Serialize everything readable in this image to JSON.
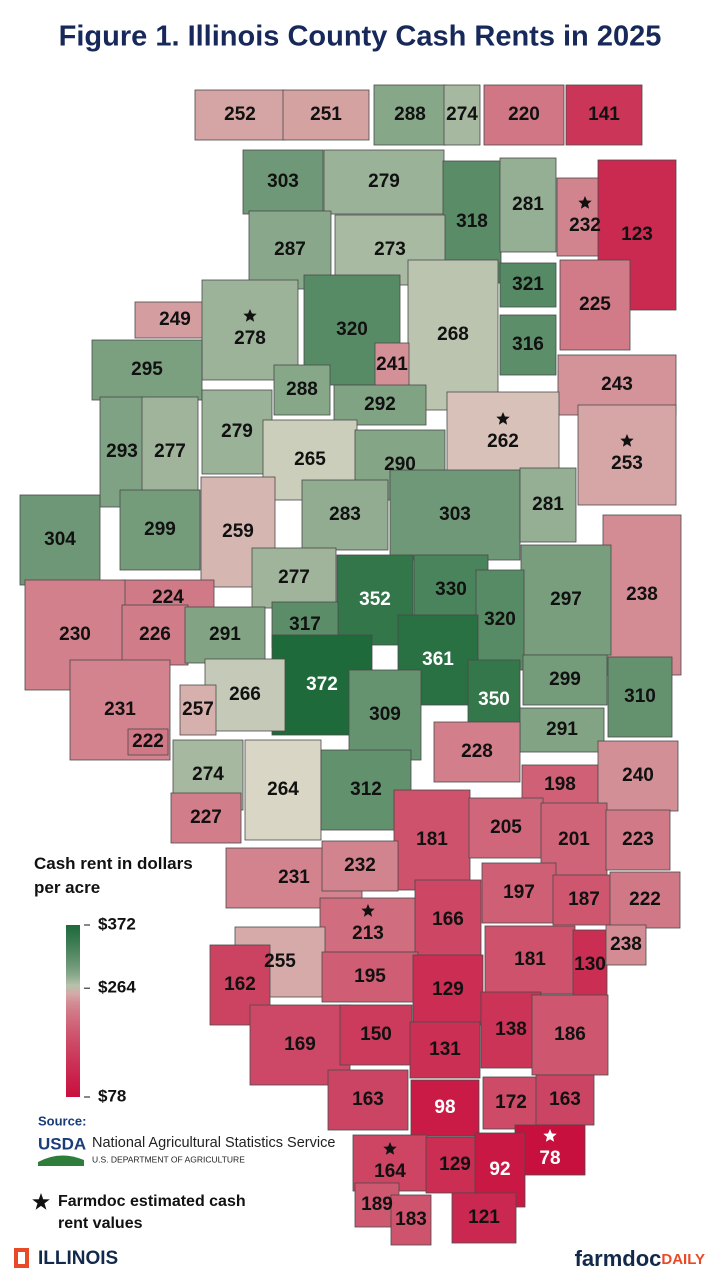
{
  "title": "Figure 1. Illinois County Cash Rents in 2025",
  "legend": {
    "title": "Cash rent in dollars per acre",
    "stops": [
      {
        "value": 372,
        "label": "$372",
        "color": "#1e6a3b"
      },
      {
        "value": 264,
        "label": "$264",
        "color": "#d9d6c6"
      },
      {
        "value": 78,
        "label": "$78",
        "color": "#c8103f"
      }
    ]
  },
  "counties": [
    {
      "value": 252
    },
    {
      "value": 251
    },
    {
      "value": 288
    },
    {
      "value": 274
    },
    {
      "value": 220
    },
    {
      "value": 141
    },
    {
      "value": 303
    },
    {
      "value": 279
    },
    {
      "value": 318
    },
    {
      "value": 281
    },
    {
      "value": 232,
      "estimated": true
    },
    {
      "value": 123
    },
    {
      "value": 287
    },
    {
      "value": 273
    },
    {
      "value": 321
    },
    {
      "value": 225
    },
    {
      "value": 249
    },
    {
      "value": 278,
      "estimated": true
    },
    {
      "value": 320
    },
    {
      "value": 268
    },
    {
      "value": 316
    },
    {
      "value": 295
    },
    {
      "value": 241
    },
    {
      "value": 243
    },
    {
      "value": 288
    },
    {
      "value": 292
    },
    {
      "value": 262,
      "estimated": true
    },
    {
      "value": 293
    },
    {
      "value": 277
    },
    {
      "value": 279
    },
    {
      "value": 265
    },
    {
      "value": 290
    },
    {
      "value": 253,
      "estimated": true
    },
    {
      "value": 304
    },
    {
      "value": 299
    },
    {
      "value": 259
    },
    {
      "value": 283
    },
    {
      "value": 303
    },
    {
      "value": 281
    },
    {
      "value": 238
    },
    {
      "value": 224
    },
    {
      "value": 277
    },
    {
      "value": 352
    },
    {
      "value": 330
    },
    {
      "value": 297
    },
    {
      "value": 230
    },
    {
      "value": 226
    },
    {
      "value": 291
    },
    {
      "value": 317
    },
    {
      "value": 320
    },
    {
      "value": 372
    },
    {
      "value": 361
    },
    {
      "value": 266
    },
    {
      "value": 257
    },
    {
      "value": 231
    },
    {
      "value": 350
    },
    {
      "value": 299
    },
    {
      "value": 310
    },
    {
      "value": 309
    },
    {
      "value": 291
    },
    {
      "value": 222
    },
    {
      "value": 228
    },
    {
      "value": 274
    },
    {
      "value": 264
    },
    {
      "value": 312
    },
    {
      "value": 198
    },
    {
      "value": 240
    },
    {
      "value": 227
    },
    {
      "value": 181
    },
    {
      "value": 205
    },
    {
      "value": 201
    },
    {
      "value": 223
    },
    {
      "value": 231
    },
    {
      "value": 232
    },
    {
      "value": 197
    },
    {
      "value": 187
    },
    {
      "value": 222
    },
    {
      "value": 213,
      "estimated": true
    },
    {
      "value": 166
    },
    {
      "value": 255
    },
    {
      "value": 181
    },
    {
      "value": 130
    },
    {
      "value": 238
    },
    {
      "value": 195
    },
    {
      "value": 129
    },
    {
      "value": 162
    },
    {
      "value": 169
    },
    {
      "value": 150
    },
    {
      "value": 131
    },
    {
      "value": 138
    },
    {
      "value": 186
    },
    {
      "value": 163
    },
    {
      "value": 98
    },
    {
      "value": 172
    },
    {
      "value": 163
    },
    {
      "value": 78,
      "estimated": true
    },
    {
      "value": 164,
      "estimated": true
    },
    {
      "value": 129
    },
    {
      "value": 92
    },
    {
      "value": 189
    },
    {
      "value": 183
    },
    {
      "value": 121
    }
  ],
  "source": {
    "heading": "Source:",
    "logo": "USDA",
    "agency": "National Agricultural Statistics Service",
    "department": "U.S. DEPARTMENT OF AGRICULTURE"
  },
  "footnote": "Farmdoc estimated cash rent values",
  "footer": {
    "left": "ILLINOIS",
    "right_main": "farmdoc",
    "right_accent": "DAILY"
  }
}
